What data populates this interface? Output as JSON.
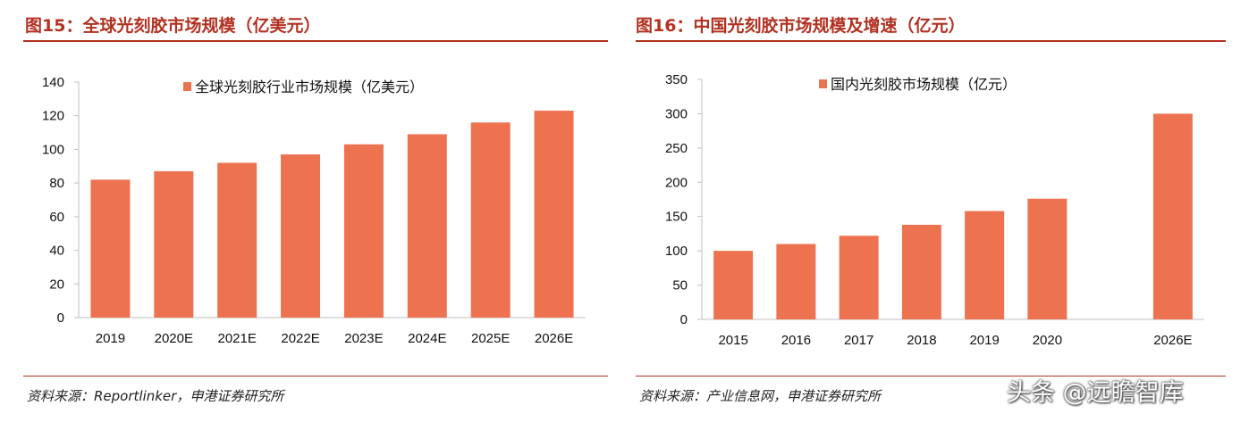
{
  "figures": [
    {
      "title": "图15：全球光刻胶市场规模（亿美元）",
      "source": "资料来源：Reportlinker，申港证券研究所",
      "chart_data": {
        "type": "bar",
        "categories": [
          "2019",
          "2020E",
          "2021E",
          "2022E",
          "2023E",
          "2024E",
          "2025E",
          "2026E"
        ],
        "series": [
          {
            "name": "全球光刻胶行业市场规模（亿美元）",
            "values": [
              82,
              87,
              92,
              97,
              103,
              109,
              116,
              123
            ]
          }
        ],
        "ylim": [
          0,
          140
        ],
        "yticks": [
          0,
          20,
          40,
          60,
          80,
          100,
          120,
          140
        ],
        "grid": false,
        "legend": "top",
        "bar_color": "#ed7350"
      }
    },
    {
      "title": "图16：中国光刻胶市场规模及增速（亿元）",
      "source": "资料来源：产业信息网，申港证券研究所",
      "chart_data": {
        "type": "bar",
        "categories": [
          "2015",
          "2016",
          "2017",
          "2018",
          "2019",
          "2020",
          "",
          "2026E"
        ],
        "series": [
          {
            "name": "国内光刻胶市场规模（亿元）",
            "values": [
              100,
              110,
              122,
              138,
              158,
              176,
              null,
              300
            ]
          }
        ],
        "ylim": [
          0,
          350
        ],
        "yticks": [
          0,
          50,
          100,
          150,
          200,
          250,
          300,
          350
        ],
        "grid": false,
        "legend": "top",
        "bar_color": "#ed7350"
      }
    }
  ],
  "watermark": "头条 @远瞻智库"
}
